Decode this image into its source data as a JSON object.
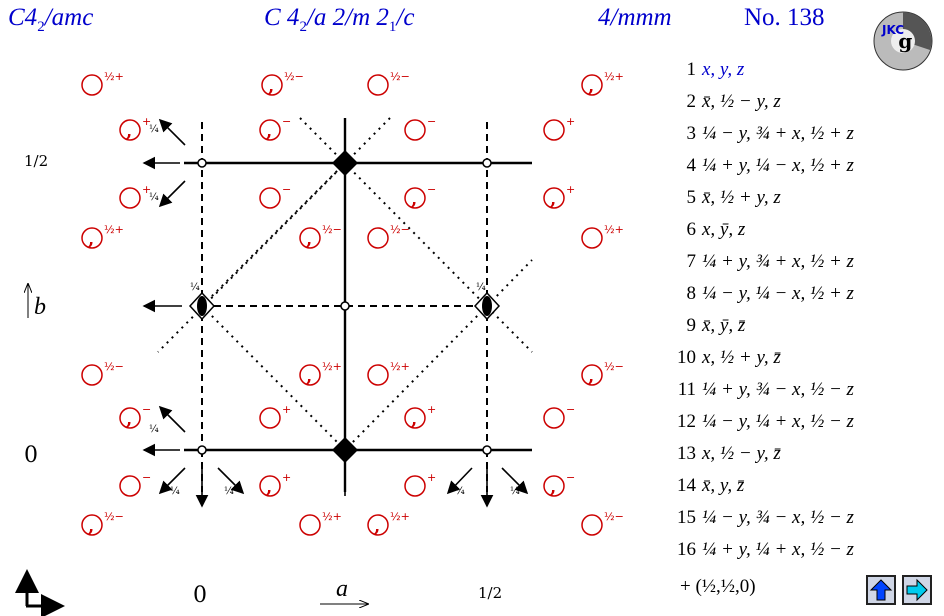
{
  "header": {
    "short_symbol": "C4",
    "short_symbol_sub": "2",
    "short_symbol_rest": "/amc",
    "full_symbol_part1": "C 4",
    "full_symbol_sub1": "2",
    "full_symbol_part2": "/a 2/m 2",
    "full_symbol_sub2": "1",
    "full_symbol_part3": "/c",
    "point_group": "4/mmm",
    "number": "No. 138"
  },
  "logo": {
    "text": "JKC"
  },
  "axes": {
    "b_label": "b",
    "a_label": "a",
    "y_half": "1/2",
    "y_zero": "0",
    "x_zero": "0",
    "x_half": "1/2"
  },
  "positions": [
    {
      "sign": "1/2+"
    },
    {
      "sign": "1/2-"
    },
    {
      "sign": "+"
    },
    {
      "sign": "-"
    },
    {
      "sign": "1/4"
    }
  ],
  "operations": [
    {
      "n": "1",
      "text": "x, y, z"
    },
    {
      "n": "2",
      "text": "x̄, ½ − y, z"
    },
    {
      "n": "3",
      "text": "¼ − y, ¾ + x, ½ + z"
    },
    {
      "n": "4",
      "text": "¼ + y, ¼ − x, ½ + z"
    },
    {
      "n": "5",
      "text": "x̄, ½ + y, z"
    },
    {
      "n": "6",
      "text": "x, ȳ, z"
    },
    {
      "n": "7",
      "text": "¼ + y, ¾ + x, ½ + z"
    },
    {
      "n": "8",
      "text": "¼ − y, ¼ − x, ½ + z"
    },
    {
      "n": "9",
      "text": "x̄, ȳ, z̄"
    },
    {
      "n": "10",
      "text": "x, ½ + y, z̄"
    },
    {
      "n": "11",
      "text": "¼ + y, ¾ − x, ½ − z"
    },
    {
      "n": "12",
      "text": "¼ − y, ¼ + x, ½ − z"
    },
    {
      "n": "13",
      "text": "x, ½ − y, z̄"
    },
    {
      "n": "14",
      "text": "x̄, y, z̄"
    },
    {
      "n": "15",
      "text": "¼ − y, ¾ − x, ½ − z"
    },
    {
      "n": "16",
      "text": "¼ + y, ¼ + x, ½ − z"
    }
  ],
  "centering": "+ (½,½,0)",
  "nav": {
    "up_icon": "up-arrow-icon",
    "next_icon": "right-arrow-icon"
  },
  "colors": {
    "title": "#0000cc",
    "circle": "#cc0000",
    "accent_btn": "#00ccee",
    "up_btn": "#0044ff"
  }
}
